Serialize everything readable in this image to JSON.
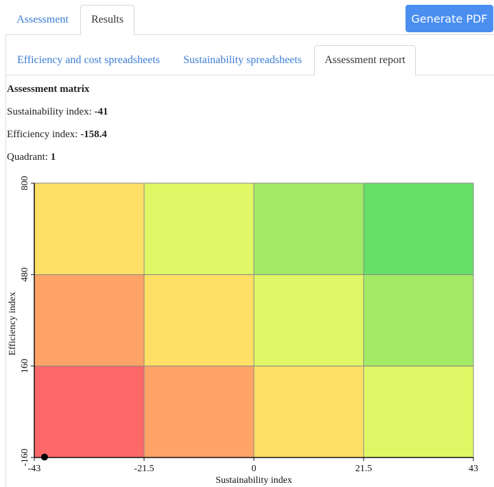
{
  "top_tabs": [
    {
      "label": "Assessment",
      "active": false
    },
    {
      "label": "Results",
      "active": true
    }
  ],
  "generate_pdf_label": "Generate PDF",
  "sub_tabs": [
    {
      "label": "Efficiency and cost spreadsheets",
      "active": false
    },
    {
      "label": "Sustainability spreadsheets",
      "active": false
    },
    {
      "label": "Assessment report",
      "active": true
    }
  ],
  "report": {
    "title": "Assessment matrix",
    "sustainability_label": "Sustainability index: ",
    "sustainability_value": "-41",
    "efficiency_label": "Efficiency index: ",
    "efficiency_value": "-158.4",
    "quadrant_label": "Quadrant: ",
    "quadrant_value": "1"
  },
  "colors": {
    "accent": "#4a8ef0",
    "link": "#3a7bd5"
  },
  "chart_data": {
    "type": "heatmap",
    "xlabel": "Sustainability index",
    "ylabel": "Efficiency index",
    "x_ticks": [
      "-43",
      "-21.5",
      "0",
      "21.5",
      "43"
    ],
    "y_ticks": [
      "-160",
      "160",
      "480",
      "800"
    ],
    "x_range": [
      -43,
      43
    ],
    "y_range": [
      -160,
      800
    ],
    "cells": [
      [
        "#ff6868",
        "#ffa366",
        "#ffe066",
        "#e0f766"
      ],
      [
        "#ffa366",
        "#ffe066",
        "#e0f766",
        "#a3eb66"
      ],
      [
        "#ffe066",
        "#e0f766",
        "#a3eb66",
        "#66e066"
      ]
    ],
    "point": {
      "x": -41,
      "y": -158.4
    }
  }
}
